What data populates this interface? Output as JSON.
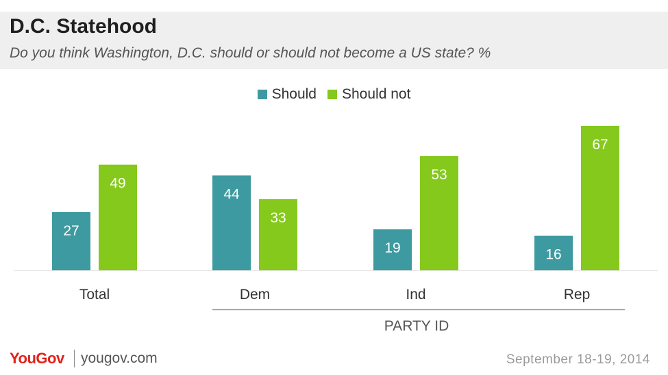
{
  "header": {
    "title": "D.C. Statehood",
    "subtitle": "Do you think Washington, D.C. should or should not become a US state? %"
  },
  "chart_data": {
    "type": "bar",
    "title": "D.C. Statehood",
    "subtitle": "Do you think Washington, D.C. should or should not become a US state? %",
    "categories": [
      "Total",
      "Dem",
      "Ind",
      "Rep"
    ],
    "series": [
      {
        "name": "Should",
        "values": [
          27,
          44,
          19,
          16
        ],
        "color": "#3d9aa0"
      },
      {
        "name": "Should not",
        "values": [
          49,
          33,
          53,
          67
        ],
        "color": "#84c91c"
      }
    ],
    "group_label": "PARTY ID",
    "group_categories": [
      "Dem",
      "Ind",
      "Rep"
    ],
    "ylim": [
      0,
      70
    ],
    "legend_position": "top-center",
    "grid": false
  },
  "footer": {
    "logo": "YouGov",
    "url": "yougov.com",
    "date": "September 18-19, 2014"
  }
}
